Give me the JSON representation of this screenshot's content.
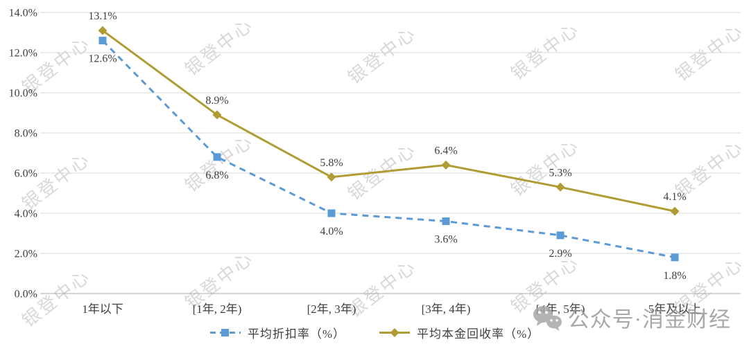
{
  "chart_data": {
    "type": "line",
    "title": "",
    "categories": [
      "1年以下",
      "[1年, 2年)",
      "[2年, 3年)",
      "[3年, 4年)",
      "[4年, 5年)",
      "5年及以上"
    ],
    "series": [
      {
        "name": "平均折扣率（%）",
        "values": [
          12.6,
          6.8,
          4.0,
          3.6,
          2.9,
          1.8
        ],
        "data_labels": [
          "12.6%",
          "6.8%",
          "4.0%",
          "3.6%",
          "2.9%",
          "1.8%"
        ],
        "color": "#5b9bd5",
        "line_style": "dashed",
        "marker": "square",
        "data_label_position": "below"
      },
      {
        "name": "平均本金回收率（%）",
        "values": [
          13.1,
          8.9,
          5.8,
          6.4,
          5.3,
          4.1
        ],
        "data_labels": [
          "13.1%",
          "8.9%",
          "5.8%",
          "6.4%",
          "5.3%",
          "4.1%"
        ],
        "color": "#b09c33",
        "line_style": "solid",
        "marker": "diamond",
        "data_label_position": "above"
      }
    ],
    "ylim": [
      0,
      14
    ],
    "ytick_step": 2,
    "ytick_labels": [
      "0.0%",
      "2.0%",
      "4.0%",
      "6.0%",
      "8.0%",
      "10.0%",
      "12.0%",
      "14.0%"
    ],
    "grid": true,
    "legend_position": "bottom-center"
  },
  "watermarks": {
    "tile_text": "银登中心",
    "brand_text": "公众号·消金财经",
    "brand_icon": "wechat-icon"
  },
  "colors": {
    "grid": "#d9d9d9",
    "axis": "#ababab",
    "text": "#3f3f3f",
    "watermark": "#7d7d8a",
    "brand": "#9a9a9a",
    "brand_icon": "#a8a8a8"
  }
}
